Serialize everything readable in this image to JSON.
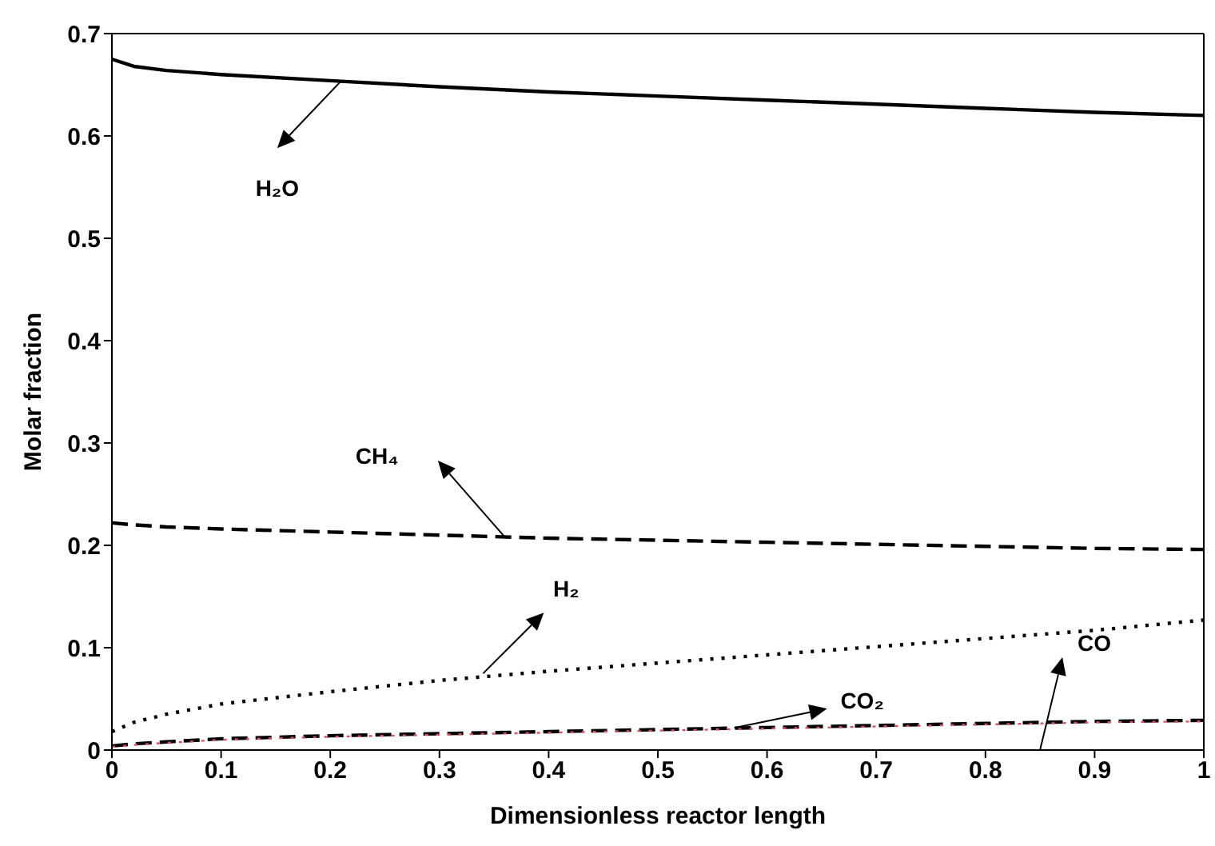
{
  "chart_data": {
    "type": "line",
    "xlabel": "Dimensionless reactor length",
    "ylabel": "Molar fraction",
    "x": [
      0,
      0.02,
      0.05,
      0.1,
      0.2,
      0.3,
      0.4,
      0.5,
      0.6,
      0.7,
      0.8,
      0.9,
      1.0
    ],
    "series": [
      {
        "color": "#000000",
        "line_style": "solid",
        "values": [
          0.675,
          0.668,
          0.664,
          0.66,
          0.654,
          0.648,
          0.643,
          0.639,
          0.635,
          0.631,
          0.627,
          0.623,
          0.62
        ]
      },
      {
        "color": "#000000",
        "line_style": "dashed",
        "values": [
          0.222,
          0.22,
          0.218,
          0.216,
          0.213,
          0.21,
          0.207,
          0.205,
          0.203,
          0.201,
          0.199,
          0.197,
          0.196
        ]
      },
      {
        "color": "#000000",
        "line_style": "dotted",
        "values": [
          0.018,
          0.027,
          0.035,
          0.045,
          0.057,
          0.068,
          0.077,
          0.085,
          0.093,
          0.101,
          0.109,
          0.117,
          0.127
        ]
      },
      {
        "color": "#000000",
        "line_style": "dashed",
        "values": [
          0.004,
          0.006,
          0.008,
          0.011,
          0.014,
          0.016,
          0.018,
          0.02,
          0.022,
          0.024,
          0.026,
          0.028,
          0.029
        ]
      },
      {
        "color": "#e05060",
        "line_style": "dotted",
        "values": [
          0.003,
          0.005,
          0.007,
          0.01,
          0.013,
          0.015,
          0.017,
          0.019,
          0.021,
          0.023,
          0.025,
          0.027,
          0.028
        ]
      }
    ],
    "annotations": [
      "H₂O",
      "CH₄",
      "H₂",
      "CO₂",
      "CO"
    ],
    "xlim": [
      0,
      1
    ],
    "xticks": [
      0,
      0.1,
      0.2,
      0.3,
      0.4,
      0.5,
      0.6,
      0.7,
      0.8,
      0.9,
      1
    ],
    "ylim": [
      0,
      0.7
    ],
    "yticks": [
      0,
      0.1,
      0.2,
      0.3,
      0.4,
      0.5,
      0.6,
      0.7
    ],
    "grid": false,
    "legend": false,
    "marker": "none"
  }
}
